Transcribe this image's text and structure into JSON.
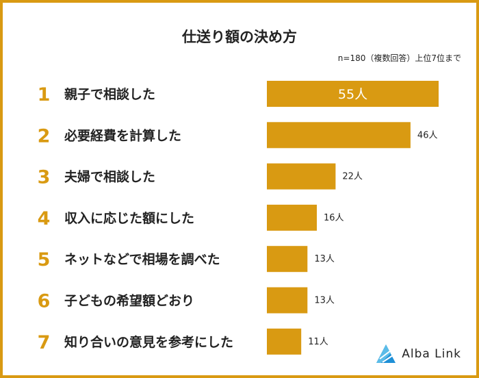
{
  "title": "仕送り額の決め方",
  "note": "n=180（複数回答）上位7位まで",
  "brand": {
    "name": "Alba Link",
    "logo_icon": "alba-link-triangle-logo"
  },
  "colors": {
    "accent": "#d99a12",
    "bar": "#d99a12",
    "frame": "#d99a12"
  },
  "chart_data": {
    "type": "bar",
    "orientation": "horizontal",
    "title": "仕送り額の決め方",
    "categories": [
      "親子で相談した",
      "必要経費を計算した",
      "夫婦で相談した",
      "収入に応じた額にした",
      "ネットなどで相場を調べた",
      "子どもの希望額どおり",
      "知り合いの意見を参考にした"
    ],
    "ranks": [
      "1",
      "2",
      "3",
      "4",
      "5",
      "6",
      "7"
    ],
    "values": [
      55,
      46,
      22,
      16,
      13,
      13,
      11
    ],
    "value_labels": [
      "55人",
      "46人",
      "22人",
      "16人",
      "13人",
      "13人",
      "11人"
    ],
    "xlim": [
      0,
      55
    ],
    "grid": false,
    "legend": "none"
  }
}
